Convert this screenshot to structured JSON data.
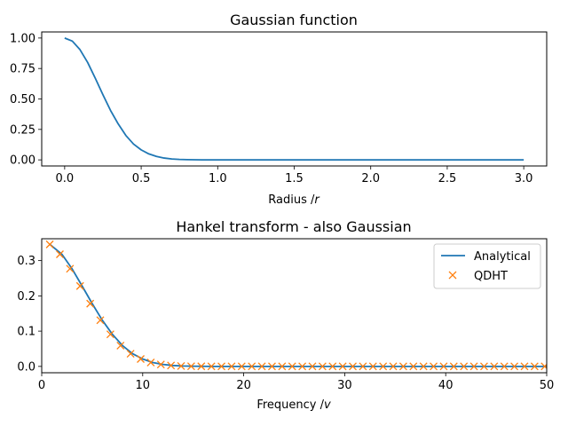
{
  "chart_data": [
    {
      "type": "line",
      "title": "Gaussian function",
      "xlabel": "Radius /",
      "xlabel_var": "r",
      "ylabel": "",
      "xlim": [
        -0.15,
        3.15
      ],
      "ylim": [
        -0.05,
        1.05
      ],
      "xticks": [
        0.0,
        0.5,
        1.0,
        1.5,
        2.0,
        2.5,
        3.0
      ],
      "xtick_labels": [
        "0.0",
        "0.5",
        "1.0",
        "1.5",
        "2.0",
        "2.5",
        "3.0"
      ],
      "yticks": [
        0.0,
        0.25,
        0.5,
        0.75,
        1.0
      ],
      "ytick_labels": [
        "0.00",
        "0.25",
        "0.50",
        "0.75",
        "1.00"
      ],
      "grid": false,
      "series": [
        {
          "color": "#1f77b4",
          "x": [
            0.0,
            0.05,
            0.1,
            0.15,
            0.2,
            0.25,
            0.3,
            0.35,
            0.4,
            0.45,
            0.5,
            0.55,
            0.6,
            0.65,
            0.7,
            0.75,
            0.8,
            0.9,
            1.0,
            1.2,
            1.5,
            2.0,
            2.5,
            3.0
          ],
          "y": [
            1.0,
            0.975,
            0.905,
            0.8,
            0.67,
            0.535,
            0.405,
            0.295,
            0.2,
            0.13,
            0.082,
            0.049,
            0.028,
            0.015,
            0.0075,
            0.0036,
            0.0017,
            0.0003,
            0.0,
            0.0,
            0.0,
            0.0,
            0.0,
            0.0
          ]
        }
      ]
    },
    {
      "type": "line",
      "title": "Hankel transform - also Gaussian",
      "xlabel": "Frequency /",
      "xlabel_var": "v",
      "ylabel": "",
      "xlim": [
        0,
        50
      ],
      "ylim": [
        -0.018,
        0.362
      ],
      "xticks": [
        0,
        10,
        20,
        30,
        40,
        50
      ],
      "xtick_labels": [
        "0",
        "10",
        "20",
        "30",
        "40",
        "50"
      ],
      "yticks": [
        0.0,
        0.1,
        0.2,
        0.3
      ],
      "ytick_labels": [
        "0.0",
        "0.1",
        "0.2",
        "0.3"
      ],
      "grid": false,
      "legend_position": "top-right",
      "series": [
        {
          "name": "Analytical",
          "style": "line",
          "color": "#1f77b4",
          "x": [
            0.8,
            2,
            3,
            4,
            5,
            6,
            7,
            8,
            9,
            10,
            11,
            12,
            13,
            14,
            15,
            17,
            20,
            25,
            30,
            35,
            40,
            45,
            50
          ],
          "y": [
            0.346,
            0.318,
            0.277,
            0.228,
            0.178,
            0.131,
            0.091,
            0.059,
            0.036,
            0.021,
            0.011,
            0.0055,
            0.0026,
            0.0011,
            0.0005,
            0.0,
            0.0,
            0.0,
            0.0,
            0.0,
            0.0,
            0.0,
            0.0
          ]
        },
        {
          "name": "QDHT",
          "style": "marker-x",
          "color": "#ff7f0e",
          "x": [
            0.8,
            1.8,
            2.8,
            3.8,
            4.8,
            5.8,
            6.8,
            7.8,
            8.8,
            9.8,
            10.8,
            11.8,
            12.8,
            13.8,
            14.8,
            15.8,
            16.8,
            17.8,
            18.8,
            19.8,
            20.8,
            21.8,
            22.8,
            23.8,
            24.8,
            25.8,
            26.8,
            27.8,
            28.8,
            29.8,
            30.8,
            31.8,
            32.8,
            33.8,
            34.8,
            35.8,
            36.8,
            37.8,
            38.8,
            39.8,
            40.8,
            41.8,
            42.8,
            43.8,
            44.8,
            45.8,
            46.8,
            47.8,
            48.8,
            49.8
          ],
          "y": [
            0.346,
            0.318,
            0.277,
            0.228,
            0.178,
            0.131,
            0.091,
            0.059,
            0.036,
            0.021,
            0.011,
            0.0055,
            0.0026,
            0.0011,
            0.0005,
            0.0002,
            0.0,
            0.0,
            0.0,
            0.0,
            0.0,
            0.0,
            0.0,
            0.0,
            0.0,
            0.0,
            0.0,
            0.0,
            0.0,
            0.0,
            0.0,
            0.0,
            0.0,
            0.0,
            0.0,
            0.0,
            0.0,
            0.0,
            0.0,
            0.0,
            0.0,
            0.0,
            0.0,
            0.0,
            0.0,
            0.0,
            0.0,
            0.0,
            0.0,
            0.0
          ]
        }
      ]
    }
  ]
}
